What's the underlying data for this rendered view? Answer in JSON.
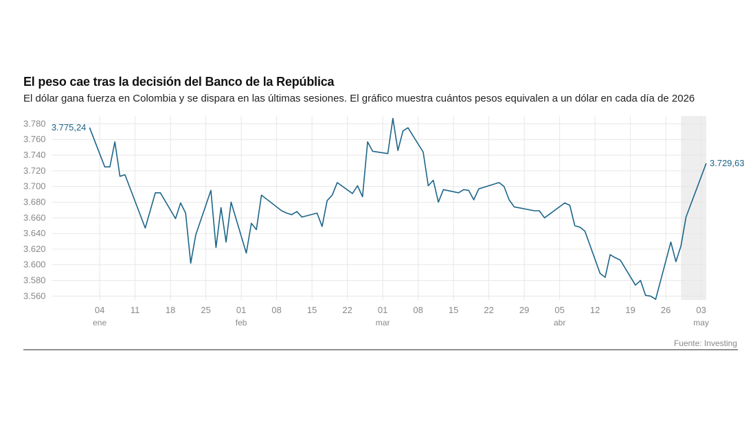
{
  "title": "El peso cae tras la decisión del Banco de la República",
  "subtitle": "El dólar gana fuerza en Colombia y se dispara en las últimas sesiones. El gráfico muestra cuántos pesos equivalen a un dólar en cada día de 2026",
  "source": "Fuente: Investing",
  "colors": {
    "line": "#1b6488",
    "grid": "#e6e6e6",
    "highlight": "#eeeeee",
    "axis_text": "#888888"
  },
  "chart_data": {
    "type": "line",
    "title": "El peso cae tras la decisión del Banco de la República",
    "ylim": [
      3555,
      3790
    ],
    "xlim": [
      "2025-12-29",
      "2026-05-04"
    ],
    "y_ticks": [
      3560,
      3580,
      3600,
      3620,
      3640,
      3660,
      3680,
      3700,
      3720,
      3740,
      3760,
      3780
    ],
    "y_tick_labels": [
      "3.560",
      "3.580",
      "3.600",
      "3.620",
      "3.640",
      "3.660",
      "3.680",
      "3.700",
      "3.720",
      "3.740",
      "3.760",
      "3.780"
    ],
    "x_ticks": [
      {
        "date": "2026-01-04",
        "label": "04",
        "month": "ene"
      },
      {
        "date": "2026-01-11",
        "label": "11",
        "month": ""
      },
      {
        "date": "2026-01-18",
        "label": "18",
        "month": ""
      },
      {
        "date": "2026-01-25",
        "label": "25",
        "month": ""
      },
      {
        "date": "2026-02-01",
        "label": "01",
        "month": "feb"
      },
      {
        "date": "2026-02-08",
        "label": "08",
        "month": ""
      },
      {
        "date": "2026-02-15",
        "label": "15",
        "month": ""
      },
      {
        "date": "2026-02-22",
        "label": "22",
        "month": ""
      },
      {
        "date": "2026-03-01",
        "label": "01",
        "month": "mar"
      },
      {
        "date": "2026-03-08",
        "label": "08",
        "month": ""
      },
      {
        "date": "2026-03-15",
        "label": "15",
        "month": ""
      },
      {
        "date": "2026-03-22",
        "label": "22",
        "month": ""
      },
      {
        "date": "2026-03-29",
        "label": "29",
        "month": ""
      },
      {
        "date": "2026-04-05",
        "label": "05",
        "month": "abr"
      },
      {
        "date": "2026-04-12",
        "label": "12",
        "month": ""
      },
      {
        "date": "2026-04-19",
        "label": "19",
        "month": ""
      },
      {
        "date": "2026-04-26",
        "label": "26",
        "month": ""
      },
      {
        "date": "2026-05-03",
        "label": "03",
        "month": "may"
      }
    ],
    "highlight_range": [
      "2026-04-29",
      "2026-05-04"
    ],
    "grid": true,
    "start_label": "3.775,24",
    "end_label": "3.729,63",
    "series": [
      {
        "name": "",
        "points": [
          [
            "2026-01-02",
            3775.24
          ],
          [
            "2026-01-05",
            3725
          ],
          [
            "2026-01-06",
            3725
          ],
          [
            "2026-01-07",
            3757
          ],
          [
            "2026-01-08",
            3713
          ],
          [
            "2026-01-09",
            3715
          ],
          [
            "2026-01-13",
            3647
          ],
          [
            "2026-01-15",
            3692
          ],
          [
            "2026-01-16",
            3692
          ],
          [
            "2026-01-19",
            3659
          ],
          [
            "2026-01-20",
            3679
          ],
          [
            "2026-01-21",
            3666
          ],
          [
            "2026-01-22",
            3602
          ],
          [
            "2026-01-23",
            3638
          ],
          [
            "2026-01-26",
            3695
          ],
          [
            "2026-01-27",
            3622
          ],
          [
            "2026-01-28",
            3673
          ],
          [
            "2026-01-29",
            3629
          ],
          [
            "2026-01-30",
            3680
          ],
          [
            "2026-02-02",
            3615
          ],
          [
            "2026-02-03",
            3653
          ],
          [
            "2026-02-04",
            3645
          ],
          [
            "2026-02-05",
            3689
          ],
          [
            "2026-02-09",
            3669
          ],
          [
            "2026-02-10",
            3666
          ],
          [
            "2026-02-11",
            3664
          ],
          [
            "2026-02-12",
            3668
          ],
          [
            "2026-02-13",
            3661
          ],
          [
            "2026-02-16",
            3666
          ],
          [
            "2026-02-17",
            3649
          ],
          [
            "2026-02-18",
            3682
          ],
          [
            "2026-02-19",
            3689
          ],
          [
            "2026-02-20",
            3705
          ],
          [
            "2026-02-23",
            3691
          ],
          [
            "2026-02-24",
            3701
          ],
          [
            "2026-02-25",
            3687
          ],
          [
            "2026-02-26",
            3757
          ],
          [
            "2026-02-27",
            3745
          ],
          [
            "2026-03-02",
            3742
          ],
          [
            "2026-03-03",
            3787
          ],
          [
            "2026-03-04",
            3746
          ],
          [
            "2026-03-05",
            3771
          ],
          [
            "2026-03-06",
            3775
          ],
          [
            "2026-03-09",
            3744
          ],
          [
            "2026-03-10",
            3701
          ],
          [
            "2026-03-11",
            3708
          ],
          [
            "2026-03-12",
            3680
          ],
          [
            "2026-03-13",
            3696
          ],
          [
            "2026-03-16",
            3692
          ],
          [
            "2026-03-17",
            3696
          ],
          [
            "2026-03-18",
            3695
          ],
          [
            "2026-03-19",
            3683
          ],
          [
            "2026-03-20",
            3697
          ],
          [
            "2026-03-24",
            3705
          ],
          [
            "2026-03-25",
            3700
          ],
          [
            "2026-03-26",
            3683
          ],
          [
            "2026-03-27",
            3674
          ],
          [
            "2026-03-31",
            3669
          ],
          [
            "2026-04-01",
            3669
          ],
          [
            "2026-04-02",
            3660
          ],
          [
            "2026-04-06",
            3679
          ],
          [
            "2026-04-07",
            3676
          ],
          [
            "2026-04-08",
            3650
          ],
          [
            "2026-04-09",
            3648
          ],
          [
            "2026-04-10",
            3643
          ],
          [
            "2026-04-13",
            3589
          ],
          [
            "2026-04-14",
            3584
          ],
          [
            "2026-04-15",
            3613
          ],
          [
            "2026-04-16",
            3609
          ],
          [
            "2026-04-17",
            3606
          ],
          [
            "2026-04-20",
            3574
          ],
          [
            "2026-04-21",
            3580
          ],
          [
            "2026-04-22",
            3561
          ],
          [
            "2026-04-23",
            3560
          ],
          [
            "2026-04-24",
            3556
          ],
          [
            "2026-04-27",
            3629
          ],
          [
            "2026-04-28",
            3604
          ],
          [
            "2026-04-29",
            3624
          ],
          [
            "2026-04-30",
            3661
          ],
          [
            "2026-05-04",
            3729.63
          ]
        ]
      }
    ]
  }
}
